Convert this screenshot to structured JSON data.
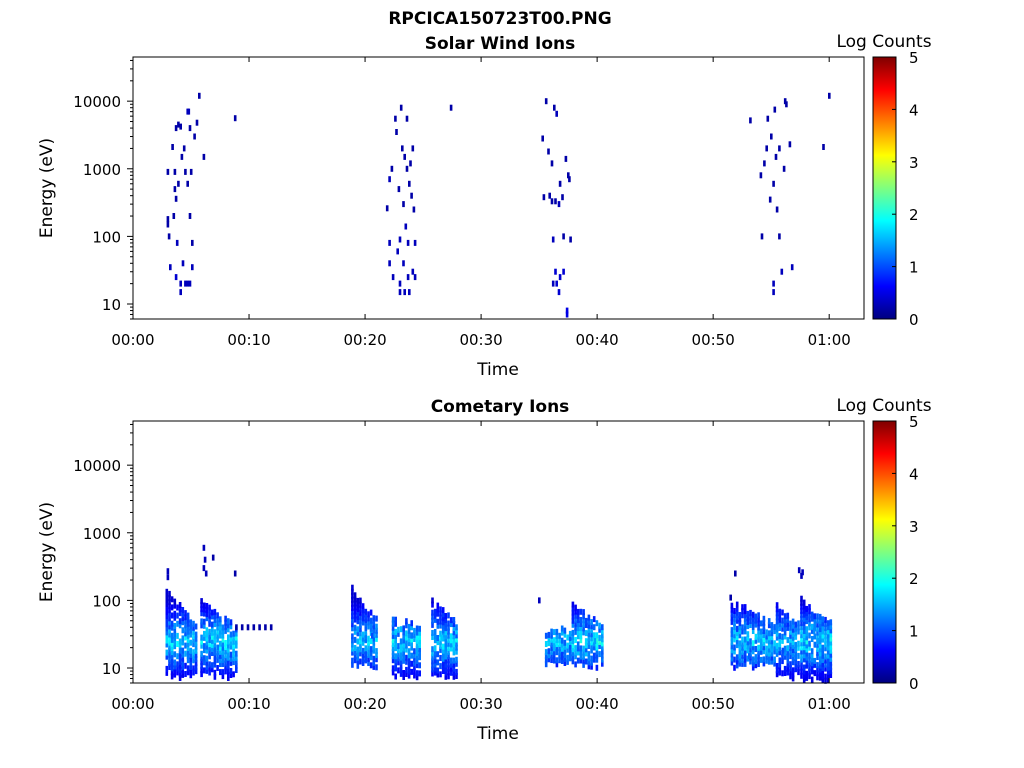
{
  "figure_title": "RPCICA150723T00.PNG",
  "colorscale": {
    "colors": [
      "#00007f",
      "#0000ff",
      "#007fff",
      "#00ffff",
      "#7fff7f",
      "#ffff00",
      "#ff7f00",
      "#ff0000",
      "#7f0000"
    ]
  },
  "chart_data": [
    {
      "type": "heatmap",
      "title": "Solar Wind Ions",
      "xlabel": "Time",
      "ylabel": "Energy (eV)",
      "yscale": "log",
      "xlim_min": [
        0,
        63
      ],
      "ylim_eV": [
        6,
        45000
      ],
      "x_ticks": [
        "00:00",
        "00:10",
        "00:20",
        "00:30",
        "00:40",
        "00:50",
        "01:00"
      ],
      "y_ticks": [
        "10",
        "100",
        "1000",
        "10000"
      ],
      "colorbar": {
        "label": "Log Counts",
        "range": [
          0,
          5
        ],
        "ticks": [
          "0",
          "1",
          "2",
          "3",
          "4",
          "5"
        ]
      },
      "cells": [
        [
          2.9,
          900,
          0.2
        ],
        [
          2.9,
          180,
          0.2
        ],
        [
          2.9,
          150,
          0.2
        ],
        [
          3.0,
          100,
          0.2
        ],
        [
          3.1,
          35,
          0.3
        ],
        [
          3.3,
          2100,
          0.2
        ],
        [
          3.4,
          200,
          0.2
        ],
        [
          3.5,
          900,
          0.2
        ],
        [
          3.5,
          500,
          0.2
        ],
        [
          3.6,
          4000,
          0.2
        ],
        [
          3.6,
          360,
          0.2
        ],
        [
          3.7,
          80,
          0.3
        ],
        [
          3.6,
          25,
          0.4
        ],
        [
          3.8,
          4500,
          0.2
        ],
        [
          3.8,
          600,
          0.2
        ],
        [
          4.0,
          4200,
          0.2
        ],
        [
          4.0,
          20,
          0.3
        ],
        [
          4.0,
          15,
          0.3
        ],
        [
          4.1,
          1500,
          0.2
        ],
        [
          4.2,
          40,
          0.3
        ],
        [
          4.3,
          2000,
          0.2
        ],
        [
          4.4,
          900,
          0.2
        ],
        [
          4.4,
          20,
          0.3
        ],
        [
          4.6,
          7000,
          0.3
        ],
        [
          4.6,
          600,
          0.2
        ],
        [
          4.6,
          20,
          0.3
        ],
        [
          4.7,
          7000,
          0.3
        ],
        [
          4.8,
          4000,
          0.2
        ],
        [
          4.8,
          200,
          0.2
        ],
        [
          4.8,
          20,
          0.3
        ],
        [
          4.9,
          900,
          0.2
        ],
        [
          5.0,
          35,
          0.3
        ],
        [
          5.0,
          80,
          0.2
        ],
        [
          5.2,
          3000,
          0.2
        ],
        [
          5.4,
          4800,
          0.2
        ],
        [
          5.6,
          12000,
          0.2
        ],
        [
          6.0,
          1500,
          0.2
        ],
        [
          8.7,
          5600,
          0.2
        ],
        [
          21.8,
          260,
          0.2
        ],
        [
          22.0,
          700,
          0.3
        ],
        [
          22.0,
          80,
          0.3
        ],
        [
          22.0,
          40,
          0.3
        ],
        [
          22.2,
          1000,
          0.2
        ],
        [
          22.3,
          25,
          0.3
        ],
        [
          22.5,
          5500,
          0.2
        ],
        [
          22.6,
          3500,
          0.2
        ],
        [
          22.7,
          60,
          0.3
        ],
        [
          22.8,
          500,
          0.2
        ],
        [
          22.9,
          90,
          0.3
        ],
        [
          22.9,
          20,
          0.3
        ],
        [
          22.9,
          15,
          0.3
        ],
        [
          23.0,
          8000,
          0.2
        ],
        [
          23.1,
          2000,
          0.2
        ],
        [
          23.2,
          300,
          0.2
        ],
        [
          23.2,
          40,
          0.3
        ],
        [
          23.3,
          1500,
          0.2
        ],
        [
          23.3,
          15,
          0.3
        ],
        [
          23.4,
          140,
          0.3
        ],
        [
          23.5,
          5500,
          0.2
        ],
        [
          23.5,
          1000,
          0.2
        ],
        [
          23.6,
          80,
          0.3
        ],
        [
          23.6,
          25,
          0.3
        ],
        [
          23.7,
          600,
          0.2
        ],
        [
          23.7,
          15,
          0.3
        ],
        [
          23.8,
          1200,
          0.2
        ],
        [
          23.9,
          400,
          0.2
        ],
        [
          24.0,
          2000,
          0.2
        ],
        [
          24.0,
          30,
          0.3
        ],
        [
          24.1,
          250,
          0.2
        ],
        [
          24.2,
          80,
          0.3
        ],
        [
          24.2,
          25,
          0.3
        ],
        [
          27.3,
          8000,
          0.2
        ],
        [
          35.2,
          2800,
          0.2
        ],
        [
          35.3,
          380,
          0.2
        ],
        [
          35.5,
          10000,
          0.2
        ],
        [
          35.7,
          1800,
          0.2
        ],
        [
          35.8,
          400,
          0.2
        ],
        [
          36.0,
          1200,
          0.2
        ],
        [
          36.0,
          330,
          0.2
        ],
        [
          36.1,
          90,
          0.3
        ],
        [
          36.1,
          20,
          0.3
        ],
        [
          36.2,
          8000,
          0.2
        ],
        [
          36.3,
          330,
          0.2
        ],
        [
          36.3,
          30,
          0.4
        ],
        [
          36.4,
          6500,
          0.3
        ],
        [
          36.4,
          20,
          0.4
        ],
        [
          36.6,
          300,
          0.3
        ],
        [
          36.6,
          15,
          0.4
        ],
        [
          36.7,
          600,
          0.2
        ],
        [
          36.7,
          25,
          0.4
        ],
        [
          36.9,
          380,
          0.2
        ],
        [
          37.0,
          100,
          0.2
        ],
        [
          37.0,
          30,
          0.4
        ],
        [
          37.2,
          1400,
          0.2
        ],
        [
          37.3,
          8,
          0.5
        ],
        [
          37.3,
          7,
          0.5
        ],
        [
          37.4,
          800,
          0.2
        ],
        [
          37.5,
          700,
          0.2
        ],
        [
          37.6,
          90,
          0.2
        ],
        [
          53.1,
          5200,
          0.2
        ],
        [
          54.0,
          800,
          0.2
        ],
        [
          54.1,
          100,
          0.2
        ],
        [
          54.3,
          1200,
          0.2
        ],
        [
          54.5,
          2000,
          0.2
        ],
        [
          54.6,
          5500,
          0.2
        ],
        [
          54.8,
          350,
          0.2
        ],
        [
          54.9,
          3000,
          0.2
        ],
        [
          55.1,
          600,
          0.2
        ],
        [
          55.1,
          15,
          0.3
        ],
        [
          55.1,
          20,
          0.3
        ],
        [
          55.2,
          7500,
          0.2
        ],
        [
          55.3,
          1500,
          0.2
        ],
        [
          55.4,
          250,
          0.2
        ],
        [
          55.6,
          2000,
          0.2
        ],
        [
          55.6,
          100,
          0.2
        ],
        [
          55.8,
          30,
          0.3
        ],
        [
          56.0,
          1000,
          0.2
        ],
        [
          56.1,
          10000,
          0.2
        ],
        [
          56.2,
          9000,
          0.2
        ],
        [
          56.5,
          2300,
          0.2
        ],
        [
          56.7,
          35,
          0.3
        ],
        [
          56.9,
          6,
          0.3
        ],
        [
          59.4,
          2100,
          0.2
        ],
        [
          59.9,
          12000,
          0.2
        ]
      ]
    },
    {
      "type": "heatmap",
      "title": "Cometary Ions",
      "xlabel": "Time",
      "ylabel": "Energy (eV)",
      "yscale": "log",
      "xlim_min": [
        0,
        63
      ],
      "ylim_eV": [
        6,
        45000
      ],
      "x_ticks": [
        "00:00",
        "00:10",
        "00:20",
        "00:30",
        "00:40",
        "00:50",
        "01:00"
      ],
      "y_ticks": [
        "10",
        "100",
        "1000",
        "10000"
      ],
      "colorbar": {
        "label": "Log Counts",
        "range": [
          0,
          5
        ],
        "ticks": [
          "0",
          "1",
          "2",
          "3",
          "4",
          "5"
        ]
      },
      "bursts": [
        {
          "t_start": 2.8,
          "t_end": 5.4,
          "e_high": 150,
          "e_low": 7,
          "peak": 1.9
        },
        {
          "t_start": 5.8,
          "t_end": 8.8,
          "e_high": 100,
          "e_low": 7,
          "peak": 2.0
        },
        {
          "t_start": 18.8,
          "t_end": 21.0,
          "e_high": 160,
          "e_low": 10,
          "peak": 1.8
        },
        {
          "t_start": 22.3,
          "t_end": 24.8,
          "e_high": 60,
          "e_low": 7,
          "peak": 1.9
        },
        {
          "t_start": 25.7,
          "t_end": 28.0,
          "e_high": 110,
          "e_low": 7,
          "peak": 1.9
        },
        {
          "t_start": 35.5,
          "t_end": 37.7,
          "e_high": 40,
          "e_low": 10,
          "peak": 1.8
        },
        {
          "t_start": 37.8,
          "t_end": 40.5,
          "e_high": 90,
          "e_low": 10,
          "peak": 2.0
        },
        {
          "t_start": 51.5,
          "t_end": 55.3,
          "e_high": 110,
          "e_low": 10,
          "peak": 1.9
        },
        {
          "t_start": 55.4,
          "t_end": 57.4,
          "e_high": 90,
          "e_low": 7,
          "peak": 1.8
        },
        {
          "t_start": 57.5,
          "t_end": 60.1,
          "e_high": 110,
          "e_low": 6,
          "peak": 2.0
        }
      ],
      "cells": [
        [
          8.8,
          40,
          0.2
        ],
        [
          9.3,
          40,
          0.2
        ],
        [
          9.8,
          40,
          0.2
        ],
        [
          10.3,
          40,
          0.2
        ],
        [
          10.8,
          40,
          0.2
        ],
        [
          11.3,
          40,
          0.2
        ],
        [
          11.8,
          40,
          0.2
        ],
        [
          2.9,
          270,
          0.3
        ],
        [
          2.9,
          220,
          0.3
        ],
        [
          6.0,
          600,
          0.3
        ],
        [
          6.1,
          400,
          0.3
        ],
        [
          6.0,
          300,
          0.3
        ],
        [
          6.2,
          250,
          0.3
        ],
        [
          8.7,
          250,
          0.2
        ],
        [
          6.8,
          430,
          0.2
        ],
        [
          34.9,
          100,
          0.3
        ],
        [
          51.4,
          110,
          0.2
        ],
        [
          51.8,
          250,
          0.2
        ],
        [
          57.3,
          280,
          0.3
        ],
        [
          57.6,
          260,
          0.3
        ],
        [
          57.5,
          230,
          0.3
        ],
        [
          20.5,
          30,
          1.0
        ],
        [
          23.9,
          30,
          1.2
        ],
        [
          26.5,
          28,
          1.6
        ],
        [
          39.7,
          25,
          1.4
        ],
        [
          58.9,
          25,
          1.4
        ],
        [
          58.6,
          35,
          1.3
        ],
        [
          4.0,
          18,
          1.2
        ],
        [
          7.2,
          20,
          1.2
        ],
        [
          53.0,
          15,
          1.1
        ],
        [
          55.9,
          18,
          1.0
        ]
      ]
    }
  ]
}
